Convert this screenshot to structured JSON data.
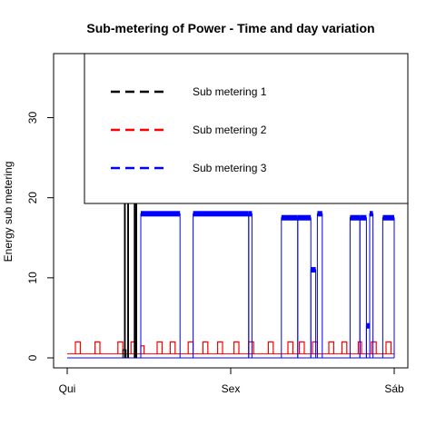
{
  "chart_data": {
    "type": "line",
    "title": "Sub-metering of Power - Time and day variation",
    "xlabel": "",
    "ylabel": "Energy sub metering",
    "x_ticks": [
      "Qui",
      "Sex",
      "Sáb"
    ],
    "y_ticks": [
      0,
      10,
      20,
      30
    ],
    "xlim": [
      0,
      2
    ],
    "ylim": [
      0,
      38
    ],
    "grid": false,
    "legend_position": "top-right",
    "series": [
      {
        "name": "Sub metering 1",
        "color": "#000000",
        "style": "spikes",
        "spikes": [
          {
            "x": [
              0.34,
              0.36
            ],
            "y": 1
          },
          {
            "x": [
              0.35,
              0.355
            ],
            "y": 37
          },
          {
            "x": [
              0.37,
              0.375
            ],
            "y": 37
          },
          {
            "x": [
              0.41,
              0.415
            ],
            "y": 37
          },
          {
            "x": [
              0.42,
              0.425
            ],
            "y": 37
          }
        ]
      },
      {
        "name": "Sub metering 2",
        "color": "#ff0000",
        "style": "spikes",
        "baseline": 0.5,
        "spikes": [
          {
            "x": [
              0.05,
              0.08
            ],
            "y": 2
          },
          {
            "x": [
              0.17,
              0.2
            ],
            "y": 2
          },
          {
            "x": [
              0.31,
              0.34
            ],
            "y": 2
          },
          {
            "x": [
              0.39,
              0.42
            ],
            "y": 2
          },
          {
            "x": [
              0.45,
              0.47
            ],
            "y": 1.5
          },
          {
            "x": [
              0.55,
              0.58
            ],
            "y": 2
          },
          {
            "x": [
              0.63,
              0.66
            ],
            "y": 2
          },
          {
            "x": [
              0.74,
              0.77
            ],
            "y": 2
          },
          {
            "x": [
              0.83,
              0.86
            ],
            "y": 2
          },
          {
            "x": [
              0.92,
              0.95
            ],
            "y": 2
          },
          {
            "x": [
              1.02,
              1.05
            ],
            "y": 2
          },
          {
            "x": [
              1.11,
              1.14
            ],
            "y": 2
          },
          {
            "x": [
              1.23,
              1.26
            ],
            "y": 2
          },
          {
            "x": [
              1.35,
              1.38
            ],
            "y": 2
          },
          {
            "x": [
              1.42,
              1.45
            ],
            "y": 2
          },
          {
            "x": [
              1.5,
              1.53
            ],
            "y": 2
          },
          {
            "x": [
              1.6,
              1.63
            ],
            "y": 2
          },
          {
            "x": [
              1.68,
              1.71
            ],
            "y": 2
          },
          {
            "x": [
              1.78,
              1.8
            ],
            "y": 2
          },
          {
            "x": [
              1.86,
              1.89
            ],
            "y": 2
          },
          {
            "x": [
              1.95,
              1.98
            ],
            "y": 2
          }
        ]
      },
      {
        "name": "Sub metering 3",
        "color": "#0000ff",
        "style": "blocks",
        "blocks": [
          {
            "x": [
              0.45,
              0.69
            ],
            "y": 18
          },
          {
            "x": [
              0.77,
              1.11
            ],
            "y": 18
          },
          {
            "x": [
              1.11,
              1.13
            ],
            "y": 18
          },
          {
            "x": [
              1.31,
              1.41
            ],
            "y": 17.5
          },
          {
            "x": [
              1.41,
              1.49
            ],
            "y": 17.5
          },
          {
            "x": [
              1.49,
              1.52
            ],
            "y": 11
          },
          {
            "x": [
              1.53,
              1.56
            ],
            "y": 18
          },
          {
            "x": [
              1.73,
              1.79
            ],
            "y": 17.5
          },
          {
            "x": [
              1.79,
              1.83
            ],
            "y": 17.5
          },
          {
            "x": [
              1.83,
              1.85
            ],
            "y": 4
          },
          {
            "x": [
              1.85,
              1.87
            ],
            "y": 18
          },
          {
            "x": [
              1.93,
              2.0
            ],
            "y": 17.5
          }
        ]
      }
    ]
  }
}
